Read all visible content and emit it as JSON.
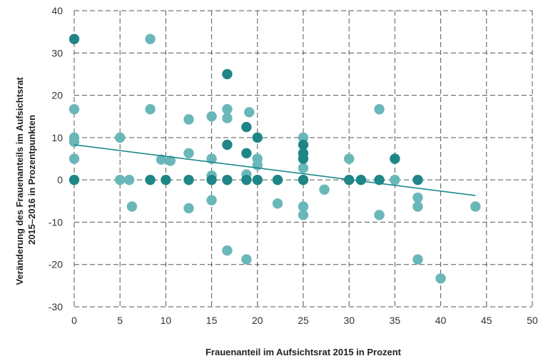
{
  "chart_data": {
    "type": "scatter",
    "title": "",
    "xlabel": "Frauenanteil im Aufsichtsrat 2015 in Prozent",
    "ylabel_lines": [
      "Veränderung des Frauenanteils im Aufsichtsrat",
      "2015–2016 in Prozentpunkten"
    ],
    "xlim": [
      0,
      50
    ],
    "ylim": [
      -30,
      40
    ],
    "xticks": [
      0,
      5,
      10,
      15,
      20,
      25,
      30,
      35,
      40,
      45,
      50
    ],
    "yticks": [
      -30,
      -20,
      -10,
      0,
      10,
      20,
      30,
      40
    ],
    "grid": true,
    "grid_style": "dashed",
    "colors": {
      "light": "#6ab7b9",
      "dark": "#1f8587",
      "trend": "#1a8a8c",
      "grid": "#555555"
    },
    "series": [
      {
        "color": "dark",
        "points": [
          [
            0,
            33.3
          ],
          [
            0,
            0
          ],
          [
            8.3,
            0
          ],
          [
            10,
            0
          ],
          [
            12.5,
            0
          ],
          [
            15,
            0
          ],
          [
            16.7,
            0
          ],
          [
            18.8,
            0
          ],
          [
            20,
            0
          ],
          [
            22.2,
            0
          ],
          [
            25,
            0
          ],
          [
            30,
            0
          ],
          [
            31.3,
            0
          ],
          [
            33.3,
            0
          ],
          [
            37.5,
            0
          ],
          [
            16.7,
            25
          ],
          [
            16.7,
            8.3
          ],
          [
            18.8,
            12.5
          ],
          [
            18.8,
            6.3
          ],
          [
            20,
            10
          ],
          [
            25,
            8.3
          ],
          [
            25,
            6.3
          ],
          [
            25,
            5
          ],
          [
            35,
            5
          ]
        ]
      },
      {
        "color": "light",
        "points": [
          [
            0,
            16.7
          ],
          [
            0,
            10
          ],
          [
            0,
            9
          ],
          [
            0,
            5
          ],
          [
            5,
            10
          ],
          [
            5,
            0
          ],
          [
            6,
            0
          ],
          [
            6.3,
            -6.3
          ],
          [
            8.3,
            33.3
          ],
          [
            8.3,
            16.7
          ],
          [
            9.5,
            4.8
          ],
          [
            10.5,
            4.5
          ],
          [
            12.5,
            14.3
          ],
          [
            12.5,
            6.3
          ],
          [
            12.5,
            -6.7
          ],
          [
            15,
            15
          ],
          [
            15,
            5
          ],
          [
            15,
            1
          ],
          [
            15,
            -4.8
          ],
          [
            16.7,
            16.7
          ],
          [
            16.7,
            14.6
          ],
          [
            16.7,
            -16.7
          ],
          [
            18.8,
            1.3
          ],
          [
            18.8,
            -18.8
          ],
          [
            19.1,
            16
          ],
          [
            20,
            5
          ],
          [
            20,
            3.5
          ],
          [
            22.2,
            -5.6
          ],
          [
            25,
            10
          ],
          [
            25,
            2.8
          ],
          [
            25,
            -6.3
          ],
          [
            25,
            -8.3
          ],
          [
            27.3,
            -2.3
          ],
          [
            30,
            5
          ],
          [
            33.3,
            16.7
          ],
          [
            33.3,
            -8.3
          ],
          [
            35,
            0
          ],
          [
            37.5,
            -4.2
          ],
          [
            37.5,
            -6.3
          ],
          [
            37.5,
            -18.8
          ],
          [
            40,
            -23.3
          ],
          [
            43.8,
            -6.3
          ]
        ]
      }
    ],
    "trendline": {
      "x": [
        0,
        43.8
      ],
      "y": [
        8.3,
        -3.7
      ]
    }
  }
}
